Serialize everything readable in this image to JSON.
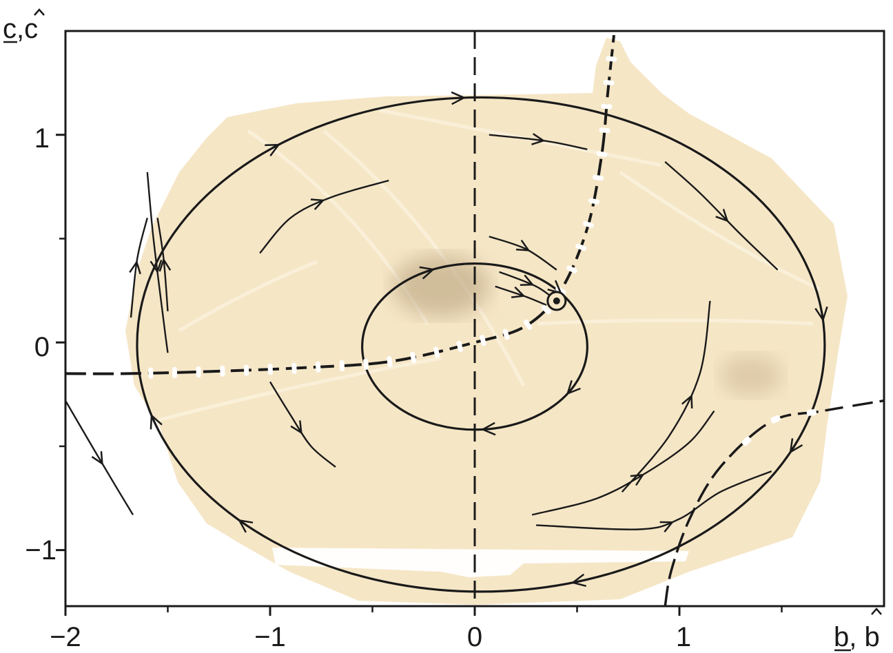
{
  "axes": {
    "x_label": "b, b",
    "x_label_underlined": "b",
    "x_label_hat": "b",
    "y_label": "c,c",
    "y_label_underlined": "c",
    "y_label_hat": "c",
    "x_range": [
      -2,
      2
    ],
    "y_range": [
      -1.27,
      1.5
    ],
    "x_ticks": [
      {
        "value": -2,
        "label": "−2"
      },
      {
        "value": -1,
        "label": "−1"
      },
      {
        "value": 0,
        "label": "0"
      },
      {
        "value": 1,
        "label": "1"
      }
    ],
    "x_minor_ticks": [
      -1.5,
      -0.5,
      0.5,
      1.5
    ],
    "y_ticks": [
      {
        "value": -1,
        "label": "−1"
      },
      {
        "value": 0,
        "label": "0"
      },
      {
        "value": 1,
        "label": "1"
      }
    ],
    "y_minor_ticks": [
      -0.5,
      0.5
    ]
  },
  "colors": {
    "paper": "#f5e6c6",
    "ink": "#1a1a1a",
    "marks": "#ffffff",
    "smudge": "#b9a27e"
  },
  "outer_orbit": {
    "cx": 0.03,
    "cy": -0.01,
    "rx": 1.68,
    "ry": 1.19
  },
  "inner_orbit": {
    "cx": 0.0,
    "cy": -0.02,
    "rx": 0.55,
    "ry": 0.4
  },
  "equilibrium": {
    "b": 0.4,
    "c": 0.2
  },
  "separatrix_main": [
    [
      -2.0,
      -0.15
    ],
    [
      -1.7,
      -0.15
    ],
    [
      -1.3,
      -0.14
    ],
    [
      -0.8,
      -0.12
    ],
    [
      -0.4,
      -0.09
    ],
    [
      0.0,
      0.0
    ],
    [
      0.25,
      0.08
    ],
    [
      0.42,
      0.25
    ],
    [
      0.55,
      0.55
    ],
    [
      0.62,
      0.9
    ],
    [
      0.65,
      1.2
    ],
    [
      0.68,
      1.48
    ]
  ],
  "separatrix_lower": [
    [
      0.93,
      -1.27
    ],
    [
      0.96,
      -1.1
    ],
    [
      1.05,
      -0.85
    ],
    [
      1.2,
      -0.6
    ],
    [
      1.45,
      -0.38
    ],
    [
      1.7,
      -0.33
    ],
    [
      2.0,
      -0.28
    ]
  ],
  "streamlines": [
    [
      [
        -1.05,
        0.43
      ],
      [
        -0.9,
        0.6
      ],
      [
        -0.7,
        0.7
      ],
      [
        -0.42,
        0.78
      ]
    ],
    [
      [
        0.07,
        1.0
      ],
      [
        0.35,
        0.97
      ],
      [
        0.55,
        0.93
      ]
    ],
    [
      [
        0.07,
        0.51
      ],
      [
        0.25,
        0.45
      ],
      [
        0.4,
        0.35
      ]
    ],
    [
      [
        0.12,
        0.34
      ],
      [
        0.3,
        0.27
      ],
      [
        0.4,
        0.2
      ]
    ],
    [
      [
        0.1,
        0.27
      ],
      [
        0.25,
        0.22
      ],
      [
        0.35,
        0.18
      ]
    ],
    [
      [
        0.93,
        0.87
      ],
      [
        1.1,
        0.72
      ],
      [
        1.3,
        0.52
      ],
      [
        1.48,
        0.35
      ]
    ],
    [
      [
        0.72,
        -0.72
      ],
      [
        0.95,
        -0.45
      ],
      [
        1.1,
        -0.15
      ],
      [
        1.15,
        0.2
      ]
    ],
    [
      [
        0.28,
        -0.83
      ],
      [
        0.6,
        -0.75
      ],
      [
        0.85,
        -0.62
      ],
      [
        1.05,
        -0.48
      ],
      [
        1.17,
        -0.33
      ]
    ],
    [
      [
        0.3,
        -0.88
      ],
      [
        0.8,
        -0.9
      ],
      [
        1.0,
        -0.85
      ],
      [
        1.2,
        -0.72
      ],
      [
        1.45,
        -0.62
      ]
    ],
    [
      [
        -1.0,
        -0.19
      ],
      [
        -0.9,
        -0.35
      ],
      [
        -0.8,
        -0.5
      ],
      [
        -0.68,
        -0.6
      ]
    ],
    [
      [
        -2.0,
        -0.28
      ],
      [
        -1.87,
        -0.5
      ],
      [
        -1.75,
        -0.7
      ],
      [
        -1.67,
        -0.83
      ]
    ],
    [
      [
        -1.6,
        0.82
      ],
      [
        -1.57,
        0.5
      ],
      [
        -1.52,
        0.1
      ],
      [
        -1.5,
        -0.05
      ]
    ],
    [
      [
        -1.5,
        0.15
      ],
      [
        -1.52,
        0.4
      ],
      [
        -1.55,
        0.6
      ]
    ],
    [
      [
        -1.68,
        0.12
      ],
      [
        -1.65,
        0.4
      ],
      [
        -1.6,
        0.6
      ]
    ]
  ]
}
